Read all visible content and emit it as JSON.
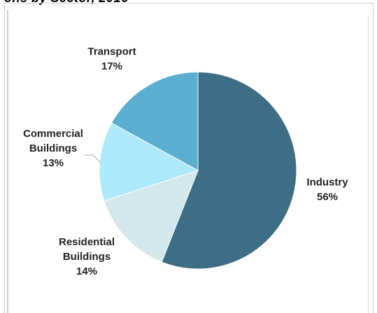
{
  "header": {
    "title_fragment": "ons by Sector, 2016"
  },
  "chart_data": {
    "type": "pie",
    "title": "ons by Sector, 2016",
    "slices": [
      {
        "label_lines": [
          "Industry"
        ],
        "value": 56,
        "value_label": "56%",
        "color": "#3d6e86"
      },
      {
        "label_lines": [
          "Residential",
          "Buildings"
        ],
        "value": 14,
        "value_label": "14%",
        "color": "#d2e8ed"
      },
      {
        "label_lines": [
          "Commercial",
          "Buildings"
        ],
        "value": 13,
        "value_label": "13%",
        "color": "#aee9fb"
      },
      {
        "label_lines": [
          "Transport"
        ],
        "value": 17,
        "value_label": "17%",
        "color": "#5aaecf"
      }
    ],
    "start_angle_deg": 0,
    "direction": "clockwise",
    "legend": "none"
  }
}
